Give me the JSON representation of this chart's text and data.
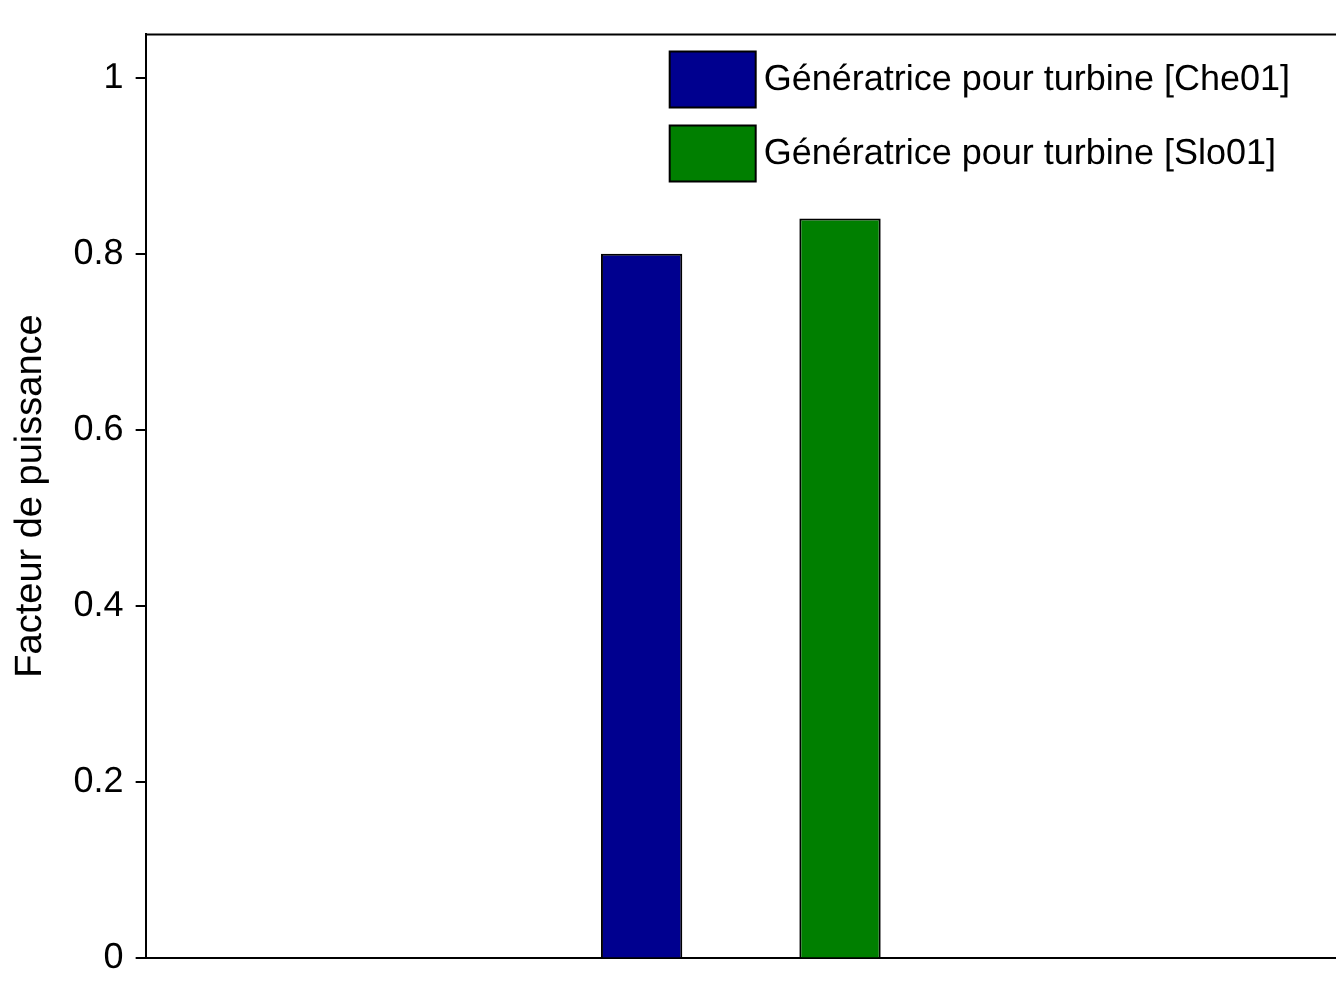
{
  "chart_data": {
    "type": "bar",
    "ylabel": "Facteur de puissance",
    "categories": [
      null,
      null
    ],
    "series": [
      {
        "name": "Génératrice pour turbine [Che01]",
        "color": "#00008f",
        "values": [
          0.8,
          null
        ]
      },
      {
        "name": "Génératrice pour turbine [Slo01]",
        "color": "#007f00",
        "values": [
          null,
          0.84
        ]
      }
    ],
    "ylim": [
      0,
      1.05
    ],
    "yticks": [
      0,
      0.2,
      0.4,
      0.6,
      0.8,
      1
    ],
    "grid": false,
    "legend": "top right",
    "tick_labels": "y"
  }
}
